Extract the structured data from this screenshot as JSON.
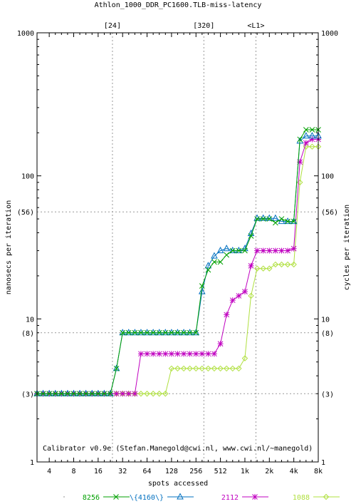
{
  "chart_data": {
    "type": "line",
    "title": "Athlon_1000_DDR_PC1600.TLB-miss-latency",
    "xlabel": "spots accessed",
    "ylabel": "nanosecs per iteration",
    "y2label": "cycles per iteration",
    "x_scale": "log2",
    "y_scale": "log10",
    "xlim": [
      2.83,
      8192
    ],
    "ylim": [
      1,
      1000
    ],
    "x_ticks": [
      4,
      8,
      16,
      32,
      64,
      128,
      256,
      512,
      1024,
      2048,
      4096,
      8192
    ],
    "x_tick_labels": [
      "4",
      "8",
      "16",
      "32",
      "64",
      "128",
      "256",
      "512",
      "1k",
      "2k",
      "4k",
      "8k"
    ],
    "y_ticks": [
      1,
      10,
      100,
      1000
    ],
    "y_tick_labels": [
      "1",
      "10",
      "100",
      "1000"
    ],
    "y_marks": [
      3,
      8,
      56
    ],
    "y_mark_labels": [
      "(3)",
      "(8)",
      "(56)"
    ],
    "x_marks": [
      24,
      320,
      1400
    ],
    "x_mark_labels": [
      "[24]",
      "[320]",
      "<L1>"
    ],
    "annotation": "Calibrator v0.9e (Stefan.Manegold@cwi.nl, www.cwi.nl/~manegold)",
    "grid": true,
    "legend_position": "bottom",
    "series": [
      {
        "name": "8256",
        "color": "#00a000",
        "marker": "x",
        "x": [
          2.83,
          3.36,
          4,
          4.76,
          5.66,
          6.73,
          8,
          9.51,
          11.3,
          13.45,
          16,
          19,
          22.6,
          26.9,
          32,
          38,
          45.3,
          53.8,
          64,
          76.1,
          90.5,
          107.6,
          128,
          152,
          181,
          215,
          256,
          304,
          362,
          430,
          512,
          609,
          724,
          861,
          1024,
          1218,
          1448,
          1722,
          2048,
          2435,
          2896,
          3444,
          4096,
          4871,
          5793,
          6889,
          8192
        ],
        "y": [
          3,
          3,
          3,
          3,
          3,
          3,
          3,
          3,
          3,
          3,
          3,
          3,
          3,
          4.5,
          8,
          8,
          8,
          8,
          8,
          8,
          8,
          8,
          8,
          8,
          8,
          8,
          8,
          17,
          22,
          25,
          25,
          28,
          30,
          30,
          30,
          38,
          50,
          50,
          50,
          47,
          50,
          48,
          48,
          180,
          210,
          210,
          210
        ]
      },
      {
        "name": "\\{4160\\}",
        "color": "#0070c0",
        "marker": "triangle",
        "x": [
          2.83,
          3.36,
          4,
          4.76,
          5.66,
          6.73,
          8,
          9.51,
          11.3,
          13.45,
          16,
          19,
          22.6,
          26.9,
          32,
          38,
          45.3,
          53.8,
          64,
          76.1,
          90.5,
          107.6,
          128,
          152,
          181,
          215,
          256,
          304,
          362,
          430,
          512,
          609,
          724,
          861,
          1024,
          1218,
          1448,
          1722,
          2048,
          2435,
          2896,
          3444,
          4096,
          4871,
          5793,
          6889,
          8192
        ],
        "y": [
          3,
          3,
          3,
          3,
          3,
          3,
          3,
          3,
          3,
          3,
          3,
          3,
          3,
          4.5,
          8,
          8,
          8,
          8,
          8,
          8,
          8,
          8,
          8,
          8,
          8,
          8,
          8,
          15.5,
          23.5,
          27.5,
          30,
          31,
          30,
          30,
          31,
          39.5,
          50.5,
          50.5,
          50.5,
          50.5,
          48,
          48,
          48,
          175,
          190,
          190,
          190
        ]
      },
      {
        "name": "2112",
        "color": "#c000c0",
        "marker": "star",
        "x": [
          2.83,
          3.36,
          4,
          4.76,
          5.66,
          6.73,
          8,
          9.51,
          11.3,
          13.45,
          16,
          19,
          22.6,
          26.9,
          32,
          38,
          45.3,
          53.8,
          64,
          76.1,
          90.5,
          107.6,
          128,
          152,
          181,
          215,
          256,
          304,
          362,
          430,
          512,
          609,
          724,
          861,
          1024,
          1218,
          1448,
          1722,
          2048,
          2435,
          2896,
          3444,
          4096,
          4871,
          5793,
          6889,
          8192
        ],
        "y": [
          3,
          3,
          3,
          3,
          3,
          3,
          3,
          3,
          3,
          3,
          3,
          3,
          3,
          3,
          3,
          3,
          3,
          5.7,
          5.7,
          5.7,
          5.7,
          5.7,
          5.7,
          5.7,
          5.7,
          5.7,
          5.7,
          5.7,
          5.7,
          5.7,
          6.7,
          10.7,
          13.5,
          14.5,
          15.5,
          23.5,
          30,
          30,
          30,
          30,
          30,
          30,
          31,
          125,
          170,
          180,
          180
        ]
      },
      {
        "name": "1088",
        "color": "#b0e040",
        "marker": "diamond",
        "x": [
          2.83,
          3.36,
          4,
          4.76,
          5.66,
          6.73,
          8,
          9.51,
          11.3,
          13.45,
          16,
          19,
          22.6,
          26.9,
          32,
          38,
          45.3,
          53.8,
          64,
          76.1,
          90.5,
          107.6,
          128,
          152,
          181,
          215,
          256,
          304,
          362,
          430,
          512,
          609,
          724,
          861,
          1024,
          1218,
          1448,
          1722,
          2048,
          2435,
          2896,
          3444,
          4096,
          4871,
          5793,
          6889,
          8192
        ],
        "y": [
          3,
          3,
          3,
          3,
          3,
          3,
          3,
          3,
          3,
          3,
          3,
          3,
          3,
          3,
          3,
          3,
          3,
          3,
          3,
          3,
          3,
          3,
          4.5,
          4.5,
          4.5,
          4.5,
          4.5,
          4.5,
          4.5,
          4.5,
          4.5,
          4.5,
          4.5,
          4.5,
          5.3,
          14.5,
          22.5,
          22.5,
          22.5,
          24,
          24,
          24,
          24,
          90,
          160,
          160,
          160
        ]
      }
    ]
  }
}
